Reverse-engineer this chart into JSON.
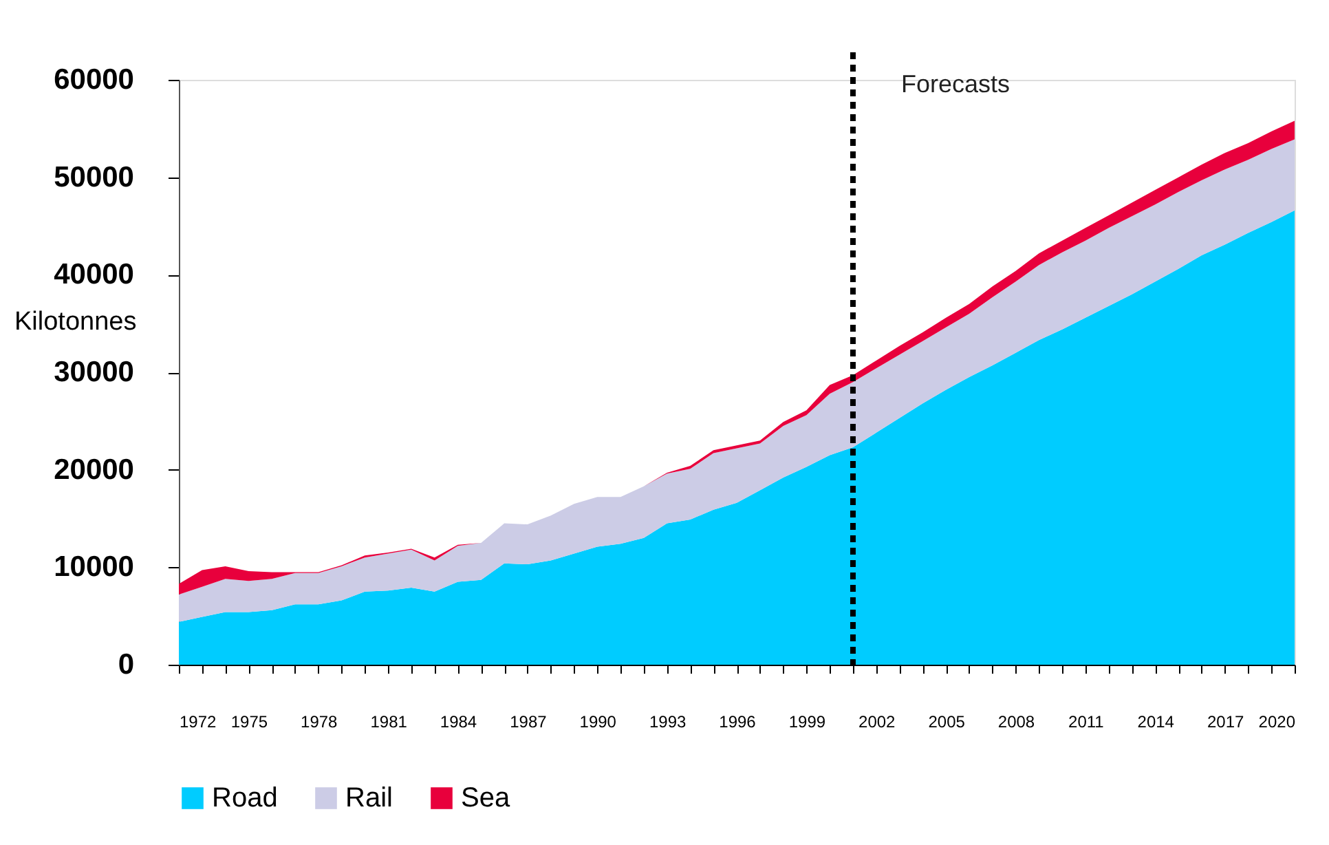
{
  "chart_data": {
    "type": "area",
    "stacked": true,
    "ylabel": "Kilotonnes",
    "x": [
      1972,
      1973,
      1974,
      1975,
      1976,
      1977,
      1978,
      1979,
      1980,
      1981,
      1982,
      1983,
      1984,
      1985,
      1986,
      1987,
      1988,
      1989,
      1990,
      1991,
      1992,
      1993,
      1994,
      1995,
      1996,
      1997,
      1998,
      1999,
      2000,
      2001,
      2002,
      2003,
      2004,
      2005,
      2006,
      2007,
      2008,
      2009,
      2010,
      2011,
      2012,
      2013,
      2014,
      2015,
      2016,
      2017,
      2018,
      2019,
      2020
    ],
    "series": [
      {
        "name": "Road",
        "color": "#00ccff",
        "values": [
          4400,
          4900,
          5400,
          5400,
          5600,
          6200,
          6200,
          6600,
          7500,
          7600,
          7900,
          7500,
          8500,
          8700,
          10400,
          10300,
          10700,
          11400,
          12100,
          12400,
          13000,
          14500,
          14900,
          15900,
          16600,
          17900,
          19200,
          20300,
          21500,
          22300,
          23800,
          25300,
          26800,
          28200,
          29500,
          30700,
          32000,
          33300,
          34400,
          35600,
          36800,
          38000,
          39300,
          40600,
          42000,
          43100,
          44300,
          45400,
          46600
        ]
      },
      {
        "name": "Rail",
        "color": "#ccccE6",
        "values": [
          2800,
          3100,
          3400,
          3200,
          3200,
          3200,
          3200,
          3500,
          3500,
          3800,
          3900,
          3200,
          3700,
          3800,
          4100,
          4100,
          4600,
          5100,
          5100,
          4800,
          5300,
          5100,
          5200,
          5800,
          5600,
          4800,
          5300,
          5300,
          6300,
          6700,
          6600,
          6500,
          6400,
          6400,
          6500,
          7000,
          7300,
          7700,
          7900,
          7900,
          8000,
          8000,
          7900,
          7900,
          7700,
          7700,
          7500,
          7500,
          7300
        ]
      },
      {
        "name": "Sea",
        "color": "#e8003c",
        "values": [
          1100,
          1700,
          1300,
          1000,
          700,
          100,
          100,
          100,
          200,
          100,
          100,
          300,
          100,
          0,
          0,
          0,
          0,
          0,
          0,
          0,
          0,
          100,
          300,
          300,
          300,
          300,
          400,
          500,
          900,
          700,
          800,
          900,
          900,
          1000,
          1000,
          1100,
          1100,
          1200,
          1200,
          1300,
          1300,
          1400,
          1500,
          1500,
          1600,
          1700,
          1700,
          1800,
          1900
        ]
      }
    ],
    "xlim": [
      1972,
      2020
    ],
    "xticks": [
      1972,
      {
        "value": 1973,
        "label": null
      },
      {
        "value": 1974,
        "label": null
      },
      1975,
      {
        "value": 1976,
        "label": null
      },
      {
        "value": 1977,
        "label": null
      },
      1978,
      {
        "value": 1979,
        "label": null
      },
      {
        "value": 1980,
        "label": null
      },
      1981,
      {
        "value": 1982,
        "label": null
      },
      {
        "value": 1983,
        "label": null
      },
      1984,
      {
        "value": 1985,
        "label": null
      },
      {
        "value": 1986,
        "label": null
      },
      1987,
      {
        "value": 1988,
        "label": null
      },
      {
        "value": 1989,
        "label": null
      },
      1990,
      {
        "value": 1991,
        "label": null
      },
      {
        "value": 1992,
        "label": null
      },
      1993,
      {
        "value": 1994,
        "label": null
      },
      {
        "value": 1995,
        "label": null
      },
      1996,
      {
        "value": 1997,
        "label": null
      },
      {
        "value": 1998,
        "label": null
      },
      1999,
      {
        "value": 2000,
        "label": null
      },
      {
        "value": 2001,
        "label": null
      },
      2002,
      {
        "value": 2003,
        "label": null
      },
      {
        "value": 2004,
        "label": null
      },
      2005,
      {
        "value": 2006,
        "label": null
      },
      {
        "value": 2007,
        "label": null
      },
      2008,
      {
        "value": 2009,
        "label": null
      },
      {
        "value": 2010,
        "label": null
      },
      2011,
      {
        "value": 2012,
        "label": null
      },
      {
        "value": 2013,
        "label": null
      },
      2014,
      {
        "value": 2015,
        "label": null
      },
      {
        "value": 2016,
        "label": null
      },
      2017,
      {
        "value": 2018,
        "label": null
      },
      {
        "value": 2019,
        "label": null
      },
      2020
    ],
    "ylim": [
      0,
      60000
    ],
    "yticks": [
      0,
      10000,
      20000,
      30000,
      40000,
      50000,
      60000
    ],
    "ref_lines": [
      {
        "axis": "x",
        "value": 2001,
        "label": "Forecasts",
        "color": "#000000",
        "line_style": "dashed"
      }
    ],
    "grid": false,
    "legend": "bottom"
  }
}
